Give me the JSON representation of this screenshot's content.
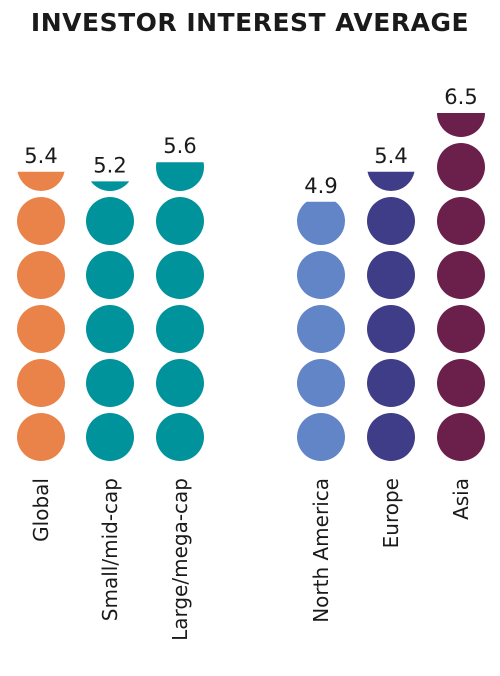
{
  "chart_data": {
    "type": "bar",
    "title": "INVESTOR INTEREST AVERAGE",
    "unit_per_dot": 1,
    "ylim": [
      0,
      7
    ],
    "categories": [
      "Global",
      "Small/mid-cap",
      "Large/mega-cap",
      "North America",
      "Europe",
      "Asia"
    ],
    "values": [
      5.4,
      5.2,
      5.6,
      4.9,
      5.4,
      6.5
    ],
    "value_labels": [
      "5.4",
      "5.2",
      "5.6",
      "4.9",
      "5.4",
      "6.5"
    ],
    "colors": [
      "#EA834A",
      "#00939B",
      "#00939B",
      "#6285C8",
      "#3F3D88",
      "#6B1F4B"
    ]
  }
}
